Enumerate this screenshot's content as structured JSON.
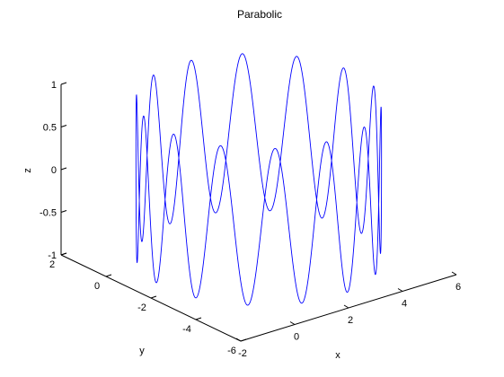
{
  "chart_data": {
    "type": "line",
    "projection": "3d",
    "title": "Parabolic",
    "xlabel": "x",
    "ylabel": "y",
    "zlabel": "z",
    "xlim": [
      -2,
      6
    ],
    "ylim": [
      -6,
      2
    ],
    "zlim": [
      -1,
      1
    ],
    "x_ticks": [
      "-2",
      "0",
      "2",
      "4",
      "6"
    ],
    "y_ticks": [
      "-6",
      "-4",
      "-2",
      "0",
      "2"
    ],
    "z_ticks": [
      "-1",
      "-0.5",
      "0",
      "0.5",
      "1"
    ],
    "grid": false,
    "series_color": "#0000ff",
    "curve": {
      "center": [
        2,
        -2
      ],
      "radius": 3.5,
      "z_amplitude": 0.92,
      "loops": 28,
      "turns": 2
    }
  }
}
